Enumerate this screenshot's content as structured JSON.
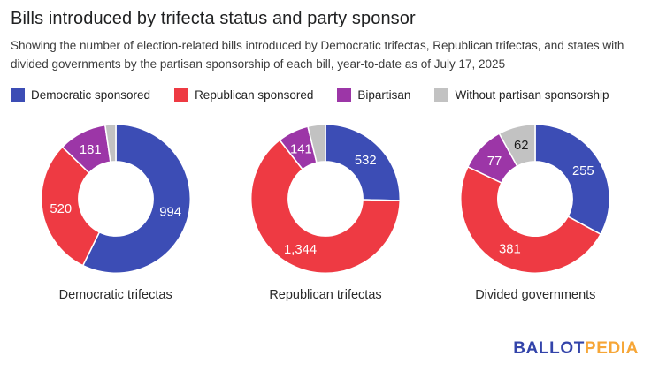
{
  "header": {
    "title": "Bills introduced by trifecta status and party sponsor",
    "subtitle": "Showing the number of election-related bills introduced by Democratic trifectas, Republican trifectas, and states with divided governments by the partisan sponsorship of each bill, year-to-date as of July 17, 2025"
  },
  "legend": {
    "items": [
      {
        "label": "Democratic sponsored",
        "color": "#3C4DB5"
      },
      {
        "label": "Republican sponsored",
        "color": "#EE3A43"
      },
      {
        "label": "Bipartisan",
        "color": "#9C36A7"
      },
      {
        "label": "Without partisan sponsorship",
        "color": "#C2C2C2"
      }
    ]
  },
  "chart_data": [
    {
      "type": "pie",
      "title": "Democratic trifectas",
      "donut": true,
      "start_angle_deg": 0,
      "direction": "clockwise",
      "series": [
        {
          "key": "democratic-sponsored",
          "name": "Democratic sponsored",
          "value": 994,
          "label": "994",
          "color": "#3C4DB5",
          "text_color": "#ffffff"
        },
        {
          "key": "republican-sponsored",
          "name": "Republican sponsored",
          "value": 520,
          "label": "520",
          "color": "#EE3A43",
          "text_color": "#ffffff"
        },
        {
          "key": "bipartisan",
          "name": "Bipartisan",
          "value": 181,
          "label": "181",
          "color": "#9C36A7",
          "text_color": "#ffffff"
        },
        {
          "key": "without-partisan-sponsorship",
          "name": "Without partisan sponsorship",
          "value": 40,
          "label": "",
          "estimated": true,
          "color": "#C2C2C2",
          "text_color": "#1c1c1c"
        }
      ]
    },
    {
      "type": "pie",
      "title": "Republican trifectas",
      "donut": true,
      "start_angle_deg": 0,
      "direction": "clockwise",
      "series": [
        {
          "key": "democratic-sponsored",
          "name": "Democratic sponsored",
          "value": 532,
          "label": "532",
          "color": "#3C4DB5",
          "text_color": "#ffffff"
        },
        {
          "key": "republican-sponsored",
          "name": "Republican sponsored",
          "value": 1344,
          "label": "1,344",
          "color": "#EE3A43",
          "text_color": "#ffffff"
        },
        {
          "key": "bipartisan",
          "name": "Bipartisan",
          "value": 141,
          "label": "141",
          "color": "#9C36A7",
          "text_color": "#ffffff"
        },
        {
          "key": "without-partisan-sponsorship",
          "name": "Without partisan sponsorship",
          "value": 80,
          "label": "",
          "estimated": true,
          "color": "#C2C2C2",
          "text_color": "#1c1c1c"
        }
      ]
    },
    {
      "type": "pie",
      "title": "Divided governments",
      "donut": true,
      "start_angle_deg": 0,
      "direction": "clockwise",
      "series": [
        {
          "key": "democratic-sponsored",
          "name": "Democratic sponsored",
          "value": 255,
          "label": "255",
          "color": "#3C4DB5",
          "text_color": "#ffffff"
        },
        {
          "key": "republican-sponsored",
          "name": "Republican sponsored",
          "value": 381,
          "label": "381",
          "color": "#EE3A43",
          "text_color": "#ffffff"
        },
        {
          "key": "bipartisan",
          "name": "Bipartisan",
          "value": 77,
          "label": "77",
          "color": "#9C36A7",
          "text_color": "#ffffff"
        },
        {
          "key": "without-partisan-sponsorship",
          "name": "Without partisan sponsorship",
          "value": 62,
          "label": "62",
          "color": "#C2C2C2",
          "text_color": "#1c1c1c"
        }
      ]
    }
  ],
  "footer": {
    "logo": {
      "part1": "BALLOT",
      "part1_color": "#3344AA",
      "part2": "PEDIA",
      "part2_color": "#F6A637"
    }
  }
}
